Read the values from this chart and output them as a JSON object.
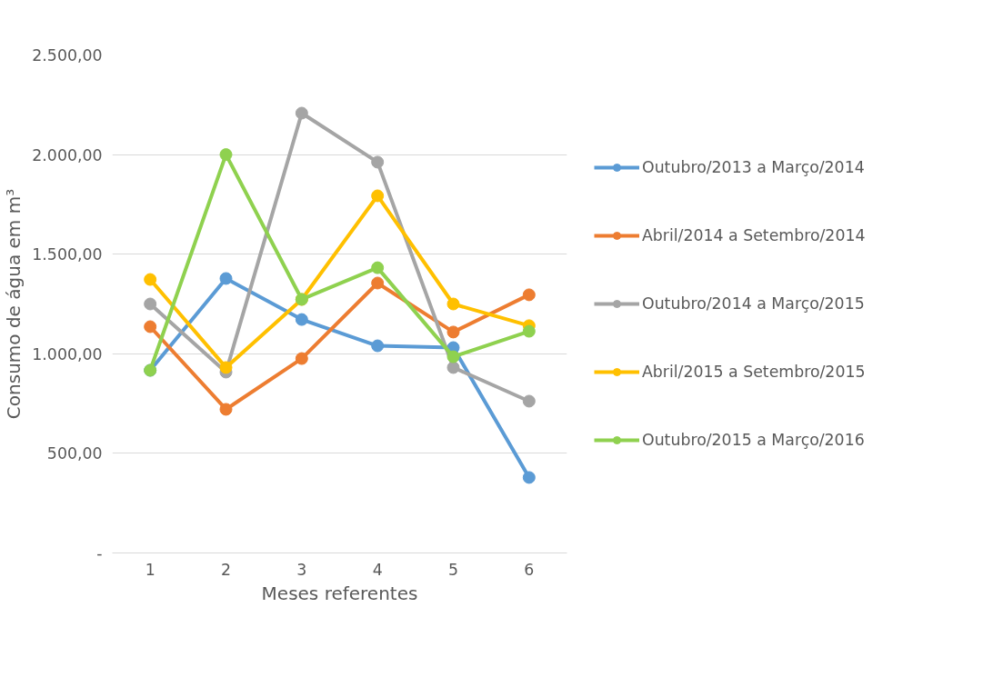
{
  "chart_data": {
    "type": "line",
    "xlabel": "Meses referentes",
    "ylabel": "Consumo de água em m³",
    "categories": [
      "1",
      "2",
      "3",
      "4",
      "5",
      "6"
    ],
    "series": [
      {
        "name": "Outubro/2013 a Março/2014",
        "color": "#5b9bd5",
        "values": [
          917,
          1378,
          1172,
          1040,
          1031,
          379
        ]
      },
      {
        "name": "Abril/2014 a Setembro/2014",
        "color": "#ed7d31",
        "values": [
          1136,
          721,
          976,
          1355,
          1109,
          1296
        ]
      },
      {
        "name": "Outubro/2014 a Março/2015",
        "color": "#a5a5a5",
        "values": [
          1250,
          908,
          2208,
          1962,
          931,
          762
        ]
      },
      {
        "name": "Abril/2015 a Setembro/2015",
        "color": "#ffc000",
        "values": [
          1373,
          931,
          1273,
          1793,
          1250,
          1141
        ]
      },
      {
        "name": "Outubro/2015 a Março/2016",
        "color": "#8fd14f",
        "values": [
          917,
          2000,
          1273,
          1432,
          985,
          1113
        ]
      }
    ],
    "ylim": [
      0,
      2500
    ],
    "yticks": [
      {
        "value": 0,
        "label": "-"
      },
      {
        "value": 500,
        "label": "500,00"
      },
      {
        "value": 1000,
        "label": "1.000,00"
      },
      {
        "value": 1500,
        "label": "1.500,00"
      },
      {
        "value": 2000,
        "label": "2.000,00"
      },
      {
        "value": 2500,
        "label": "2.500,00"
      }
    ],
    "grid": "y",
    "legend": "right",
    "marker": "circle",
    "line_style": "solid"
  }
}
